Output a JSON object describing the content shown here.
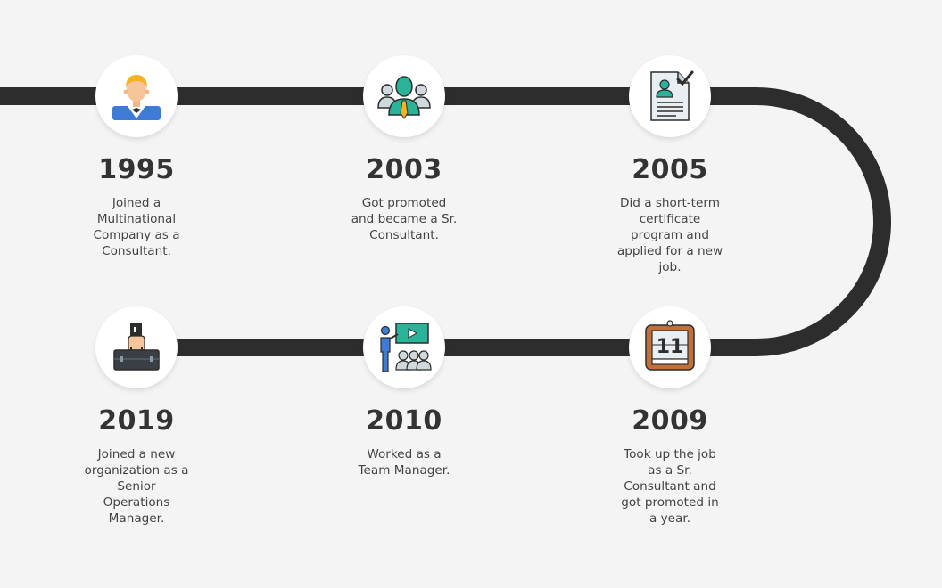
{
  "milestones": [
    {
      "year": "1995",
      "description": "Joined a Multinational Company as a Consultant.",
      "icon": "consultant-person-icon"
    },
    {
      "year": "2003",
      "description": "Got promoted and became a Sr. Consultant.",
      "icon": "team-leader-icon"
    },
    {
      "year": "2005",
      "description": "Did a short-term certificate program and applied for a new job.",
      "icon": "resume-checkmark-icon"
    },
    {
      "year": "2009",
      "description": "Took up the job as a Sr. Consultant and got promoted in a year.",
      "icon": "calendar-icon"
    },
    {
      "year": "2010",
      "description": "Worked as a Team Manager.",
      "icon": "presentation-icon"
    },
    {
      "year": "2019",
      "description": "Joined a new organization as a Senior Operations Manager.",
      "icon": "briefcase-hand-icon"
    }
  ],
  "colors": {
    "track": "#2d2d2d",
    "background": "#f4f4f4",
    "year_text": "#333333",
    "description_text": "#444444",
    "accent_teal": "#2bb39a"
  },
  "calendar_day": "11"
}
